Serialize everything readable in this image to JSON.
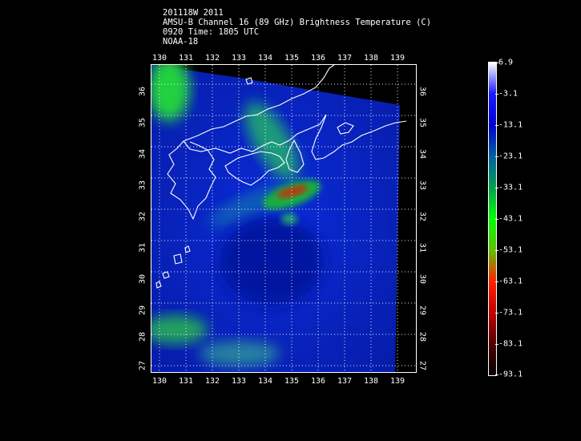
{
  "header": {
    "line1": "201118W 2011",
    "line2": "AMSU-B Channel 16 (89 GHz) Brightness Temperature (C)",
    "line3": "0920 Time: 1805 UTC",
    "line4": "NOAA-18"
  },
  "map": {
    "lon_ticks": [
      "130",
      "131",
      "132",
      "133",
      "134",
      "135",
      "136",
      "137",
      "138",
      "139"
    ],
    "lat_ticks": [
      "36",
      "35",
      "34",
      "33",
      "32",
      "31",
      "30",
      "29",
      "28",
      "27"
    ],
    "lon_range": [
      129.7,
      139.7
    ],
    "lat_range": [
      36.6,
      26.8
    ],
    "gridline_color": "#ffffff",
    "coastline_color": "#ffffff"
  },
  "colorbar": {
    "labels": [
      "6.9",
      "-3.1",
      "-13.1",
      "-23.1",
      "-33.1",
      "-43.1",
      "-53.1",
      "-63.1",
      "-73.1",
      "-83.1",
      "-93.1"
    ],
    "colors": [
      "#ffffff",
      "#1a1aff",
      "#0000d0",
      "#0060a0",
      "#00a050",
      "#00ff00",
      "#60c000",
      "#ff2000",
      "#c00000",
      "#500000",
      "#000000"
    ]
  }
}
